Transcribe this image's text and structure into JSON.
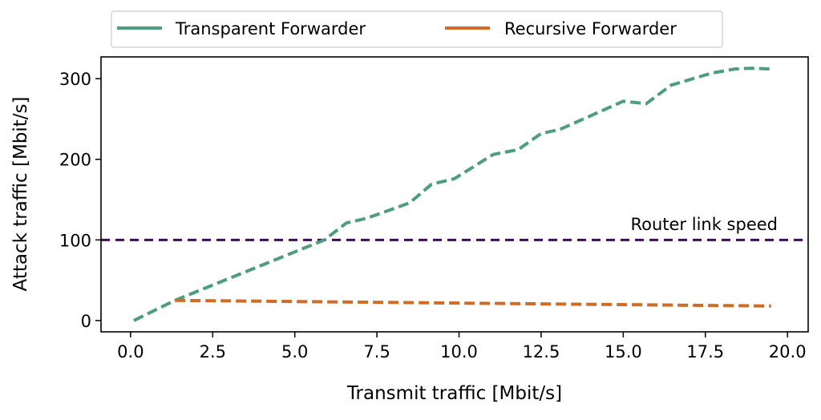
{
  "chart_data": {
    "type": "line",
    "xlabel": "Transmit traffic [Mbit/s]",
    "ylabel": "Attack traffic [Mbit/s]",
    "xlim": [
      -0.9,
      20.63
    ],
    "ylim": [
      -14,
      327
    ],
    "xticks": [
      "0.0",
      "2.5",
      "5.0",
      "7.5",
      "10.0",
      "12.5",
      "15.0",
      "17.5",
      "20.0"
    ],
    "yticks": [
      "0",
      "100",
      "200",
      "300"
    ],
    "grid": false,
    "legend_placement": "top-center-outside",
    "series": [
      {
        "name": "Transparent Forwarder",
        "color": "#4c9e7c",
        "style": "dashed",
        "x": [
          0.1,
          1.35,
          5.9,
          6.57,
          7.2,
          8.5,
          9.16,
          9.86,
          11.04,
          11.8,
          12.5,
          13.07,
          15.0,
          15.7,
          16.46,
          17.7,
          18.4,
          18.9,
          19.5
        ],
        "y": [
          0,
          25,
          100,
          121,
          127,
          146,
          169,
          176,
          206,
          212,
          232,
          237,
          272,
          269,
          292,
          307,
          312,
          313,
          312
        ]
      },
      {
        "name": "Recursive Forwarder",
        "color": "#cf6d27",
        "style": "dashed",
        "x": [
          1.35,
          19.5
        ],
        "y": [
          25,
          18
        ]
      }
    ],
    "hline": {
      "y": 100,
      "label": "Router link speed",
      "color": "#3b0f4f"
    }
  }
}
